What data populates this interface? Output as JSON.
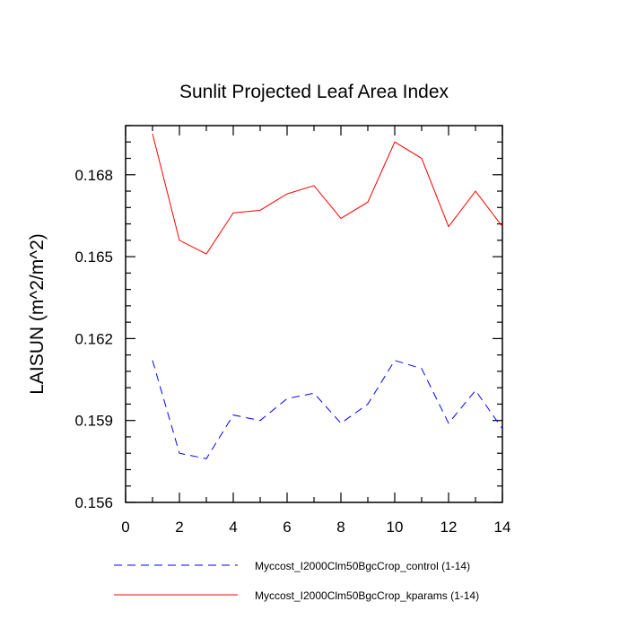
{
  "chart_data": {
    "type": "line",
    "title": "Sunlit Projected Leaf Area Index",
    "xlabel": "",
    "ylabel": "LAISUN  (m^2/m^2)",
    "xlim": [
      0,
      14
    ],
    "ylim": [
      0.156,
      0.1698
    ],
    "x_major_ticks": [
      0,
      2,
      4,
      6,
      8,
      10,
      12,
      14
    ],
    "x_tick_labels": [
      "0",
      "2",
      "4",
      "6",
      "8",
      "10",
      "12",
      "14"
    ],
    "y_major_ticks": [
      0.156,
      0.159,
      0.162,
      0.165,
      0.168
    ],
    "y_tick_labels": [
      "0.156",
      "0.159",
      "0.162",
      "0.165",
      "0.168"
    ],
    "grid": false,
    "legend_position": "bottom",
    "x": [
      1,
      2,
      3,
      4,
      5,
      6,
      7,
      8,
      9,
      10,
      11,
      12,
      13,
      14
    ],
    "series": [
      {
        "name": "Myccost_I2000Clm50BgcCrop_control (1-14)",
        "color": "#0000ff",
        "dash": "dashed",
        "values": [
          0.1612,
          0.1578,
          0.1576,
          0.1592,
          0.159,
          0.1598,
          0.16,
          0.1589,
          0.1596,
          0.1612,
          0.1609,
          0.1589,
          0.1601,
          0.1587
        ]
      },
      {
        "name": "Myccost_I2000Clm50BgcCrop_kparams (1-14)",
        "color": "#ff0000",
        "dash": "solid",
        "values": [
          0.1695,
          0.1656,
          0.1651,
          0.1666,
          0.1667,
          0.1673,
          0.1676,
          0.1664,
          0.167,
          0.1692,
          0.1686,
          0.1661,
          0.1674,
          0.1661
        ]
      }
    ]
  }
}
